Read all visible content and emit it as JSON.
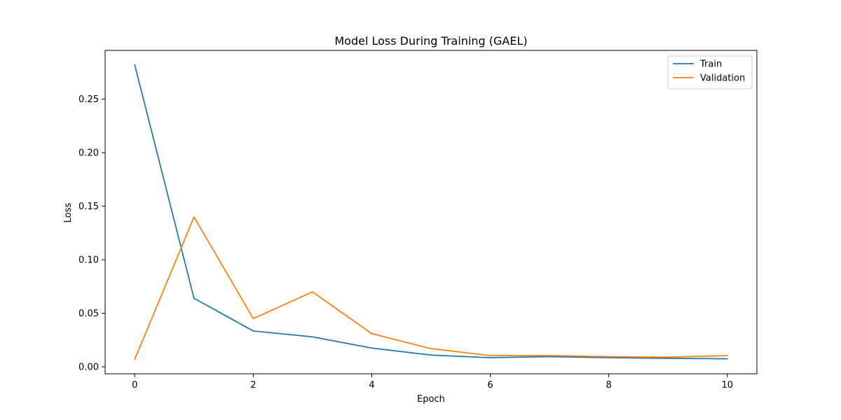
{
  "chart_data": {
    "type": "line",
    "title": "Model Loss During Training (GAEL)",
    "xlabel": "Epoch",
    "ylabel": "Loss",
    "xlim": [
      -0.5,
      10.5
    ],
    "ylim": [
      -0.0065,
      0.2955
    ],
    "xticks": [
      0,
      2,
      4,
      6,
      8,
      10
    ],
    "yticks": [
      0.0,
      0.05,
      0.1,
      0.15,
      0.2,
      0.25
    ],
    "ytick_labels": [
      "0.00",
      "0.05",
      "0.10",
      "0.15",
      "0.20",
      "0.25"
    ],
    "x": [
      0,
      1,
      2,
      3,
      4,
      5,
      6,
      7,
      8,
      9,
      10
    ],
    "series": [
      {
        "name": "Train",
        "color": "#1f77b4",
        "values": [
          0.282,
          0.064,
          0.0335,
          0.028,
          0.0175,
          0.011,
          0.0085,
          0.0095,
          0.0085,
          0.008,
          0.0075
        ]
      },
      {
        "name": "Validation",
        "color": "#ff7f0e",
        "values": [
          0.007,
          0.14,
          0.045,
          0.07,
          0.031,
          0.017,
          0.0105,
          0.0105,
          0.0095,
          0.009,
          0.0105
        ]
      }
    ],
    "grid": false,
    "legend_position": "top-right"
  }
}
